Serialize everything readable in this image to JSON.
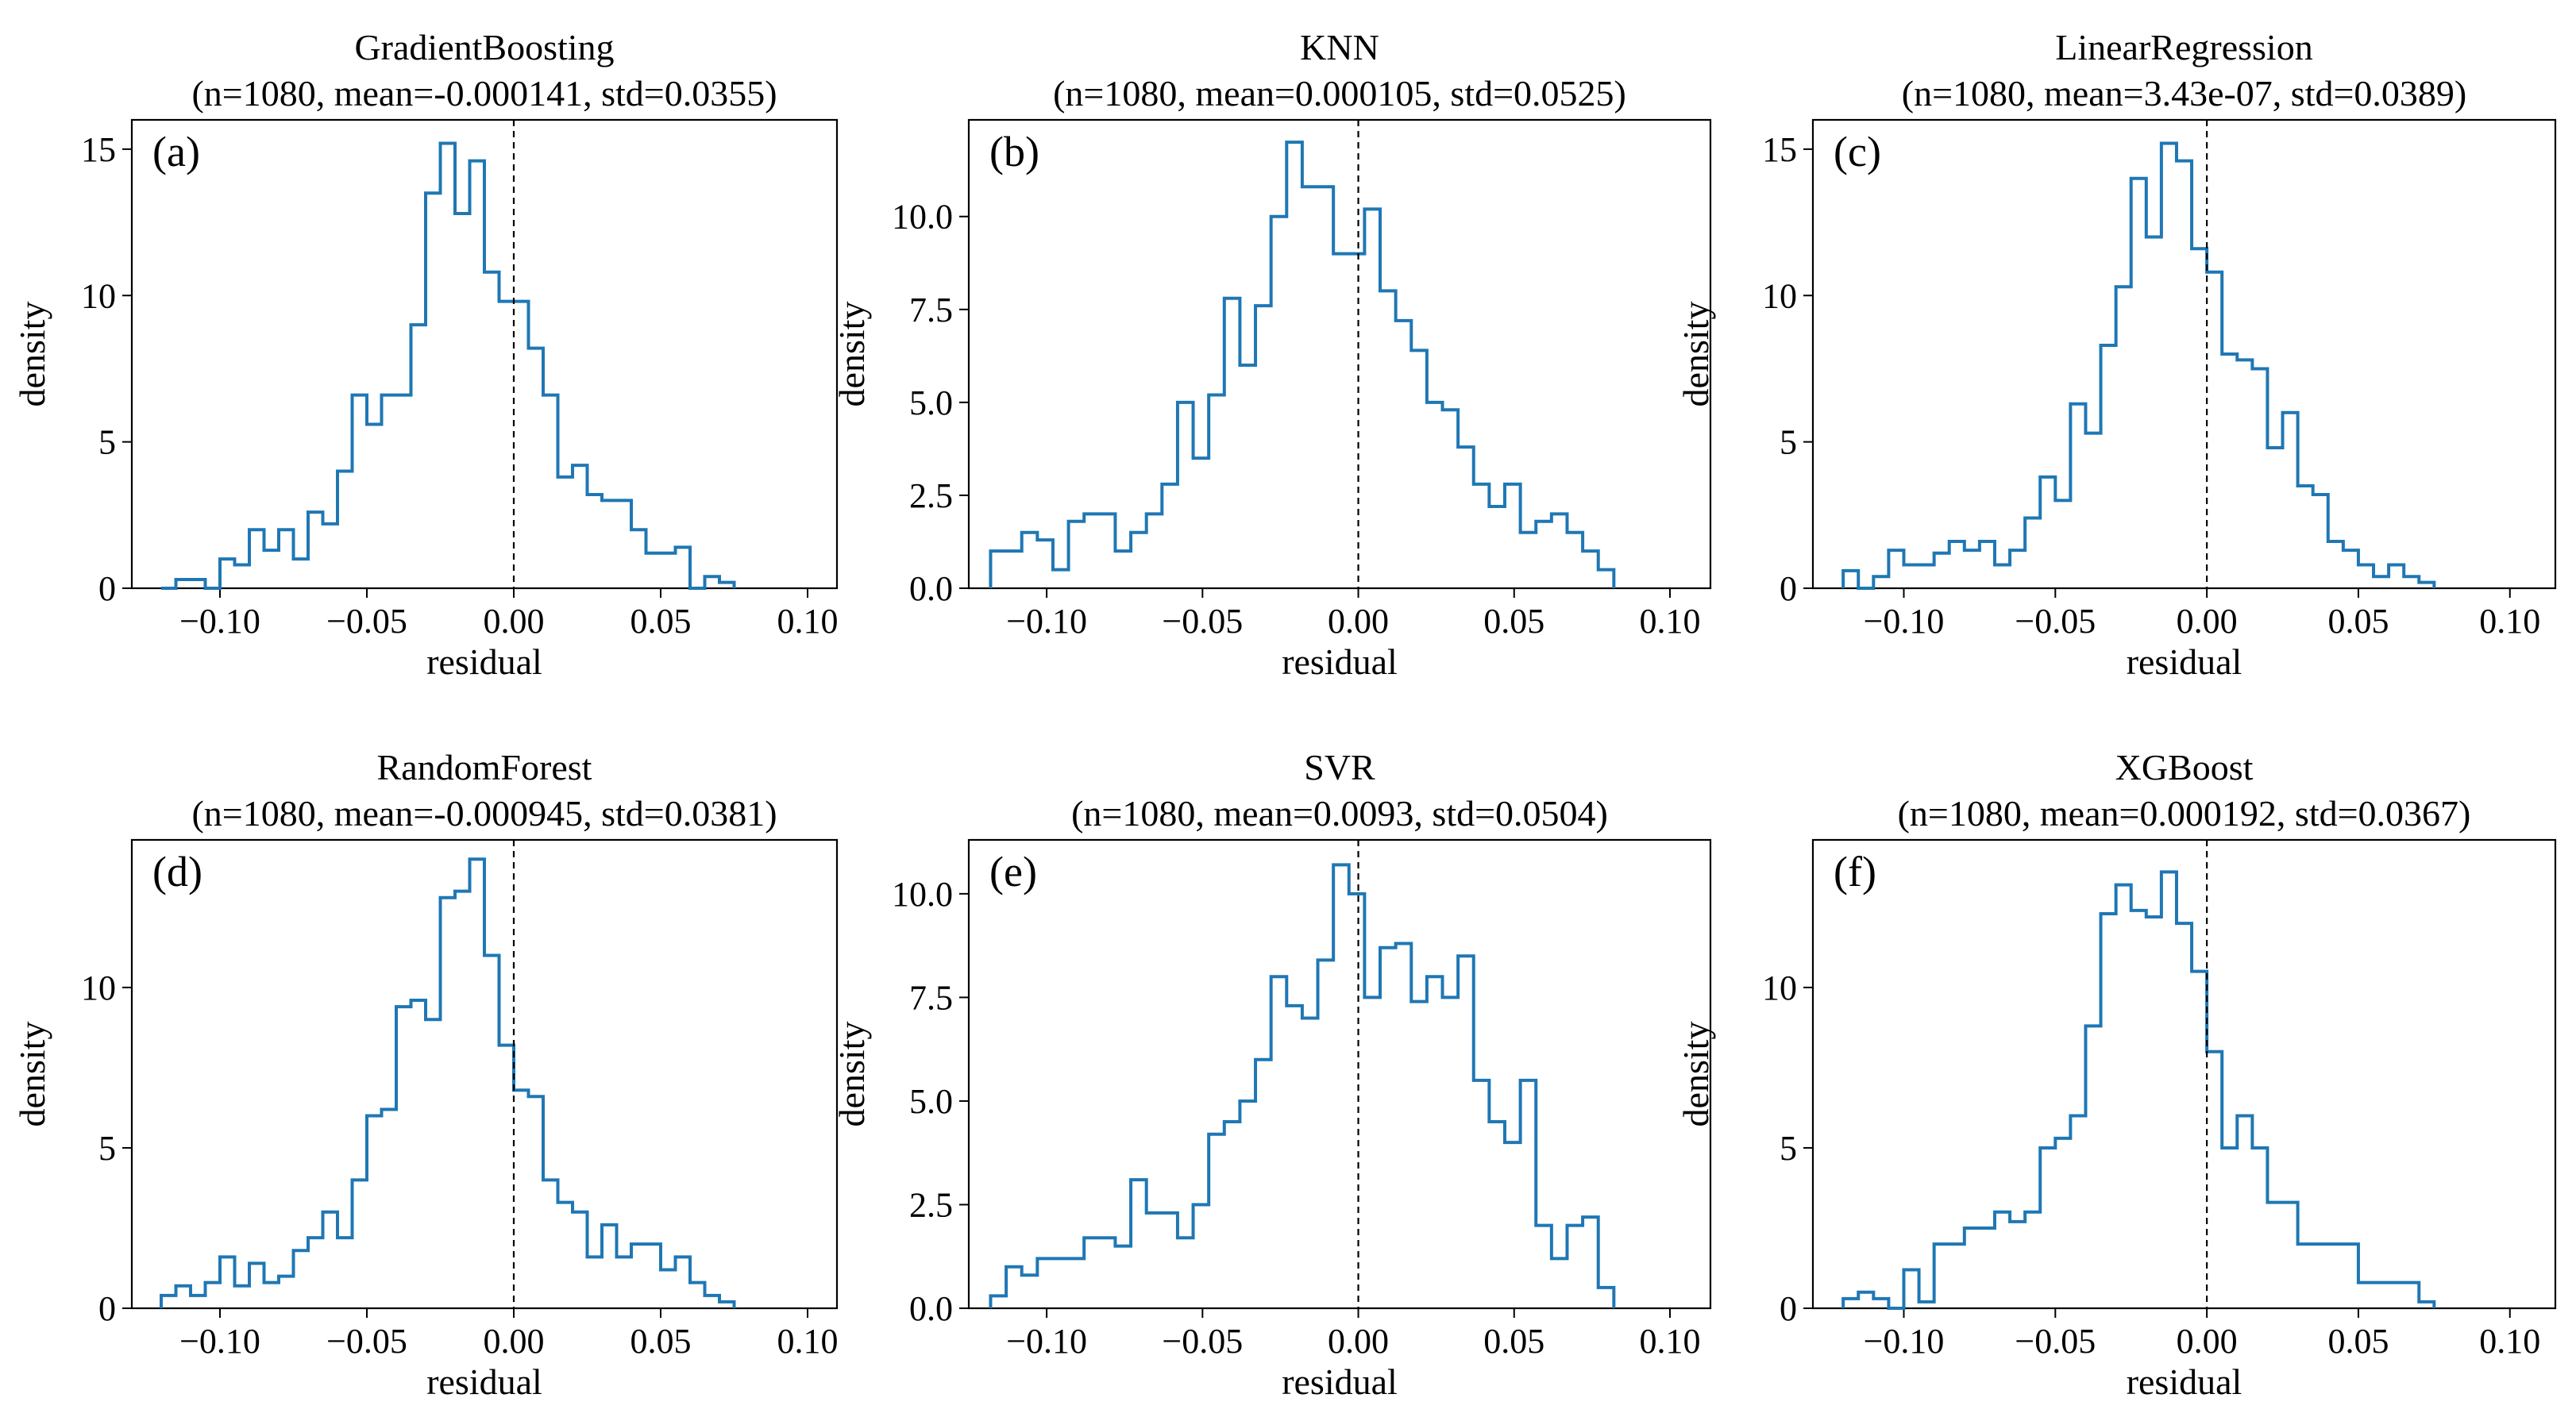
{
  "chart_data": [
    {
      "type": "histogram",
      "panel_label": "(a)",
      "title": "GradientBoosting",
      "subtitle": "(n=1080, mean=-0.000141, std=0.0355)",
      "xlabel": "residual",
      "ylabel": "density",
      "xlim": [
        -0.13,
        0.11
      ],
      "ylim": [
        0,
        16.0
      ],
      "xticks": [
        -0.1,
        -0.05,
        0.0,
        0.05,
        0.1
      ],
      "xtick_labels": [
        "−0.10",
        "−0.05",
        "0.00",
        "0.05",
        "0.10"
      ],
      "yticks": [
        0,
        5,
        10,
        15
      ],
      "ytick_labels": [
        "0",
        "5",
        "10",
        "15"
      ],
      "bin_start": -0.12,
      "bin_width": 0.005,
      "densities": [
        0.0,
        0.3,
        0.3,
        0.0,
        1.0,
        0.8,
        2.0,
        1.3,
        2.0,
        1.0,
        2.6,
        2.2,
        4.0,
        6.6,
        5.6,
        6.6,
        6.6,
        9.0,
        13.5,
        15.2,
        12.8,
        14.6,
        10.8,
        9.8,
        9.8,
        8.2,
        6.6,
        3.8,
        4.2,
        3.2,
        3.0,
        3.0,
        2.0,
        1.2,
        1.2,
        1.4,
        0.0,
        0.4,
        0.2
      ],
      "reference_line": 0.0,
      "color": "#1f77b4"
    },
    {
      "type": "histogram",
      "panel_label": "(b)",
      "title": "KNN",
      "subtitle": "(n=1080, mean=0.000105, std=0.0525)",
      "xlabel": "residual",
      "ylabel": "density",
      "xlim": [
        -0.125,
        0.113
      ],
      "ylim": [
        0,
        12.6
      ],
      "xticks": [
        -0.1,
        -0.05,
        0.0,
        0.05,
        0.1
      ],
      "xtick_labels": [
        "−0.10",
        "−0.05",
        "0.00",
        "0.05",
        "0.10"
      ],
      "yticks": [
        0.0,
        2.5,
        5.0,
        7.5,
        10.0
      ],
      "ytick_labels": [
        "0.0",
        "2.5",
        "5.0",
        "7.5",
        "10.0"
      ],
      "bin_start": -0.118,
      "bin_width": 0.005,
      "densities": [
        1.0,
        1.0,
        1.5,
        1.3,
        0.5,
        1.8,
        2.0,
        2.0,
        1.0,
        1.5,
        2.0,
        2.8,
        5.0,
        3.5,
        5.2,
        7.8,
        6.0,
        7.6,
        10.0,
        12.0,
        10.8,
        10.8,
        9.0,
        9.0,
        10.2,
        8.0,
        7.2,
        6.4,
        5.0,
        4.8,
        3.8,
        2.8,
        2.2,
        2.8,
        1.5,
        1.8,
        2.0,
        1.5,
        1.0,
        0.5
      ],
      "reference_line": 0.0,
      "color": "#1f77b4"
    },
    {
      "type": "histogram",
      "panel_label": "(c)",
      "title": "LinearRegression",
      "subtitle": "(n=1080, mean=3.43e-07, std=0.0389)",
      "xlabel": "residual",
      "ylabel": "density",
      "xlim": [
        -0.13,
        0.115
      ],
      "ylim": [
        0,
        16.0
      ],
      "xticks": [
        -0.1,
        -0.05,
        0.0,
        0.05,
        0.1
      ],
      "xtick_labels": [
        "−0.10",
        "−0.05",
        "0.00",
        "0.05",
        "0.10"
      ],
      "yticks": [
        0,
        5,
        10,
        15
      ],
      "ytick_labels": [
        "0",
        "5",
        "10",
        "15"
      ],
      "bin_start": -0.12,
      "bin_width": 0.005,
      "densities": [
        0.6,
        0.0,
        0.4,
        1.3,
        0.8,
        0.8,
        1.2,
        1.6,
        1.3,
        1.6,
        0.8,
        1.3,
        2.4,
        3.8,
        3.0,
        6.3,
        5.3,
        8.3,
        10.3,
        14.0,
        12.0,
        15.2,
        14.6,
        11.6,
        10.8,
        8.0,
        7.8,
        7.5,
        4.8,
        6.0,
        3.5,
        3.2,
        1.6,
        1.3,
        0.8,
        0.4,
        0.8,
        0.4,
        0.2
      ],
      "reference_line": 0.0,
      "color": "#1f77b4"
    },
    {
      "type": "histogram",
      "panel_label": "(d)",
      "title": "RandomForest",
      "subtitle": "(n=1080, mean=-0.000945, std=0.0381)",
      "xlabel": "residual",
      "ylabel": "density",
      "xlim": [
        -0.13,
        0.11
      ],
      "ylim": [
        0,
        14.6
      ],
      "xticks": [
        -0.1,
        -0.05,
        0.0,
        0.05,
        0.1
      ],
      "xtick_labels": [
        "−0.10",
        "−0.05",
        "0.00",
        "0.05",
        "0.10"
      ],
      "yticks": [
        0,
        5,
        10
      ],
      "ytick_labels": [
        "0",
        "5",
        "10"
      ],
      "bin_start": -0.12,
      "bin_width": 0.005,
      "densities": [
        0.4,
        0.7,
        0.4,
        0.8,
        1.6,
        0.7,
        1.4,
        0.8,
        1.0,
        1.8,
        2.2,
        3.0,
        2.2,
        4.0,
        6.0,
        6.2,
        9.4,
        9.6,
        9.0,
        12.8,
        13.0,
        14.0,
        11.0,
        8.2,
        6.8,
        6.6,
        4.0,
        3.3,
        3.0,
        1.6,
        2.6,
        1.6,
        2.0,
        2.0,
        1.2,
        1.6,
        0.8,
        0.4,
        0.2
      ],
      "reference_line": 0.0,
      "color": "#1f77b4"
    },
    {
      "type": "histogram",
      "panel_label": "(e)",
      "title": "SVR",
      "subtitle": "(n=1080, mean=0.0093, std=0.0504)",
      "xlabel": "residual",
      "ylabel": "density",
      "xlim": [
        -0.125,
        0.113
      ],
      "ylim": [
        0,
        11.3
      ],
      "xticks": [
        -0.1,
        -0.05,
        0.0,
        0.05,
        0.1
      ],
      "xtick_labels": [
        "−0.10",
        "−0.05",
        "0.00",
        "0.05",
        "0.10"
      ],
      "yticks": [
        0.0,
        2.5,
        5.0,
        7.5,
        10.0
      ],
      "ytick_labels": [
        "0.0",
        "2.5",
        "5.0",
        "7.5",
        "10.0"
      ],
      "bin_start": -0.118,
      "bin_width": 0.005,
      "densities": [
        0.3,
        1.0,
        0.8,
        1.2,
        1.2,
        1.2,
        1.7,
        1.7,
        1.5,
        3.1,
        2.3,
        2.3,
        1.7,
        2.5,
        4.2,
        4.5,
        5.0,
        6.0,
        8.0,
        7.3,
        7.0,
        8.4,
        10.7,
        10.0,
        7.5,
        8.7,
        8.8,
        7.4,
        8.0,
        7.5,
        8.5,
        5.5,
        4.5,
        4.0,
        5.5,
        2.0,
        1.2,
        2.0,
        2.2,
        0.5
      ],
      "reference_line": 0.0,
      "color": "#1f77b4"
    },
    {
      "type": "histogram",
      "panel_label": "(f)",
      "title": "XGBoost",
      "subtitle": "(n=1080, mean=0.000192, std=0.0367)",
      "xlabel": "residual",
      "ylabel": "density",
      "xlim": [
        -0.13,
        0.115
      ],
      "ylim": [
        0,
        14.6
      ],
      "xticks": [
        -0.1,
        -0.05,
        0.0,
        0.05,
        0.1
      ],
      "xtick_labels": [
        "−0.10",
        "−0.05",
        "0.00",
        "0.05",
        "0.10"
      ],
      "yticks": [
        0,
        5,
        10
      ],
      "ytick_labels": [
        "0",
        "5",
        "10"
      ],
      "bin_start": -0.12,
      "bin_width": 0.005,
      "densities": [
        0.3,
        0.5,
        0.3,
        0.0,
        1.2,
        0.2,
        2.0,
        2.0,
        2.5,
        2.5,
        3.0,
        2.7,
        3.0,
        5.0,
        5.3,
        6.0,
        8.8,
        12.3,
        13.2,
        12.4,
        12.2,
        13.6,
        12.0,
        10.5,
        8.0,
        5.0,
        6.0,
        5.0,
        3.3,
        3.3,
        2.0,
        2.0,
        2.0,
        2.0,
        0.8,
        0.8,
        0.8,
        0.8,
        0.2
      ],
      "reference_line": 0.0,
      "color": "#1f77b4"
    }
  ]
}
